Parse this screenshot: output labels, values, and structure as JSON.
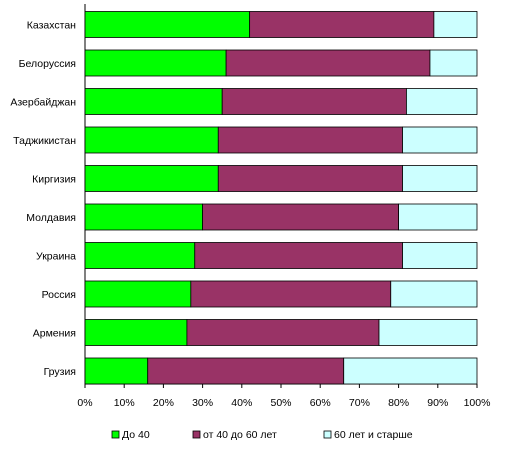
{
  "chart_data": {
    "type": "bar",
    "orientation": "horizontal",
    "stacked": true,
    "categories": [
      "Казахстан",
      "Белоруссия",
      "Азербайджан",
      "Таджикистан",
      "Киргизия",
      "Молдавия",
      "Украина",
      "Россия",
      "Армения",
      "Грузия"
    ],
    "series": [
      {
        "name": "До 40",
        "color": "#00ff00",
        "values": [
          42,
          36,
          35,
          34,
          34,
          30,
          28,
          27,
          26,
          16
        ]
      },
      {
        "name": "от 40 до 60 лет",
        "color": "#993366",
        "values": [
          47,
          52,
          47,
          47,
          47,
          50,
          53,
          51,
          49,
          50
        ]
      },
      {
        "name": "60 лет и старше",
        "color": "#ccffff",
        "values": [
          11,
          12,
          18,
          19,
          19,
          20,
          19,
          22,
          25,
          34
        ]
      }
    ],
    "xlim": [
      0,
      100
    ],
    "xticks": [
      "0%",
      "10%",
      "20%",
      "30%",
      "40%",
      "50%",
      "60%",
      "70%",
      "80%",
      "90%",
      "100%"
    ],
    "title": "",
    "xlabel": "",
    "ylabel": "",
    "grid": false,
    "legend_position": "bottom"
  }
}
